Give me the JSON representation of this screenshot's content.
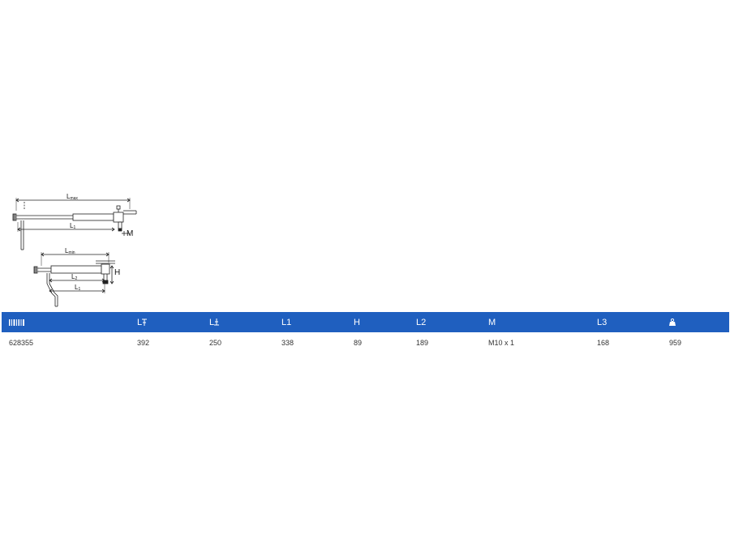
{
  "drawing": {
    "labels": {
      "lmax_main": "L",
      "lmax_sub": "max",
      "l1_top_main": "L",
      "l1_top_sub": "1",
      "m_top": "M",
      "lmin_main": "L",
      "lmin_sub": "min",
      "h": "H",
      "l2_main": "L",
      "l2_sub": "2",
      "l1_bot_main": "L",
      "l1_bot_sub": "1"
    }
  },
  "table": {
    "header_color": "#1f5fbf",
    "headers": {
      "code": {
        "icon": "barcode-icon"
      },
      "lmax": {
        "text": "L",
        "icon": "extended-length-symbol"
      },
      "lmin": {
        "text": "L",
        "icon": "retracted-length-symbol"
      },
      "l1": {
        "text": "L1"
      },
      "h": {
        "text": "H"
      },
      "l2": {
        "text": "L2"
      },
      "m": {
        "text": "M"
      },
      "l3": {
        "text": "L3"
      },
      "weight": {
        "icon": "weight-icon"
      }
    },
    "row": {
      "code": "628355",
      "lmax": "392",
      "lmin": "250",
      "l1": "338",
      "h": "89",
      "l2": "189",
      "m": "M10 x 1",
      "l3": "168",
      "weight": "959"
    }
  }
}
